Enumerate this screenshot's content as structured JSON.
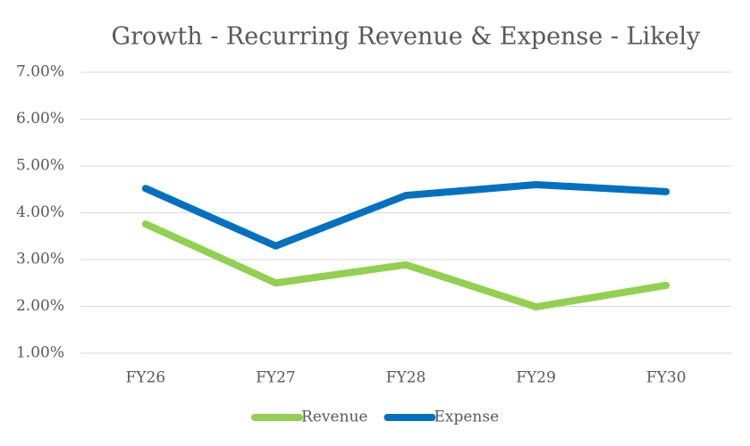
{
  "chart_data": {
    "type": "line",
    "title": "Growth - Recurring Revenue & Expense - Likely",
    "categories": [
      "FY26",
      "FY27",
      "FY28",
      "FY29",
      "FY30"
    ],
    "series": [
      {
        "name": "Revenue",
        "color": "#92d050",
        "values": [
          3.76,
          2.5,
          2.89,
          1.99,
          2.45
        ]
      },
      {
        "name": "Expense",
        "color": "#0070c0",
        "values": [
          4.52,
          3.29,
          4.37,
          4.6,
          4.45
        ]
      }
    ],
    "ylim": [
      1,
      7
    ],
    "yticks": [
      {
        "value": 1,
        "label": "1.00%"
      },
      {
        "value": 2,
        "label": "2.00%"
      },
      {
        "value": 3,
        "label": "3.00%"
      },
      {
        "value": 4,
        "label": "4.00%"
      },
      {
        "value": 5,
        "label": "5.00%"
      },
      {
        "value": 6,
        "label": "6.00%"
      },
      {
        "value": 7,
        "label": "7.00%"
      }
    ],
    "grid": true,
    "legend": "bottom"
  }
}
